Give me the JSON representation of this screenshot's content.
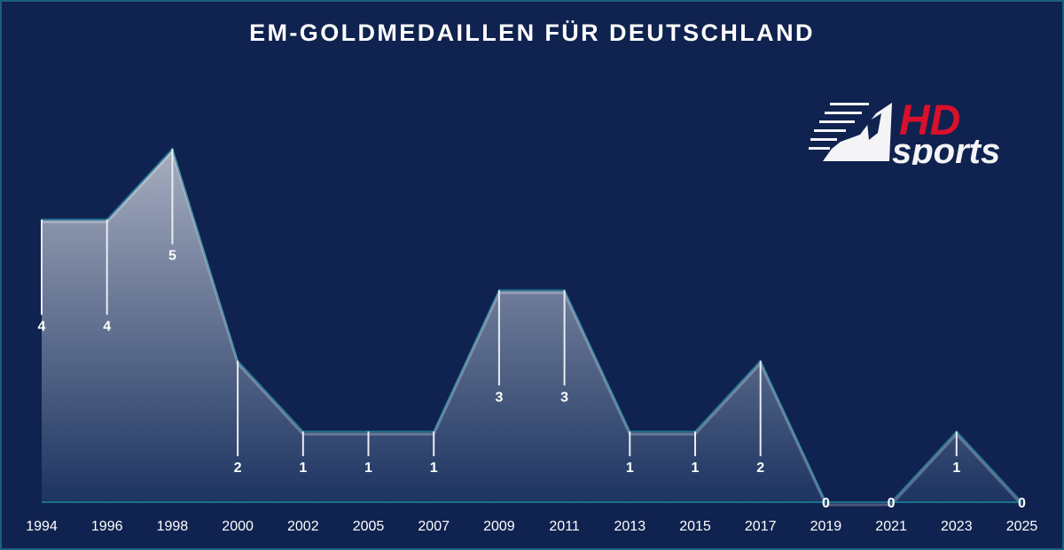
{
  "title": "EM-GOLDMEDAILLEN FÜR DEUTSCHLAND",
  "logo": {
    "top": "HD",
    "bottom": "sports",
    "icon": "runner-icon"
  },
  "colors": {
    "background": "#10224f",
    "border": "#1d5f80",
    "area_top": "#a6adbf",
    "area_bottom": "#1d3461",
    "outline": "#1e6f8f",
    "logo_red": "#d9102a",
    "text": "#ffffff"
  },
  "chart_data": {
    "type": "area",
    "title": "EM-GOLDMEDAILLEN FÜR DEUTSCHLAND",
    "xlabel": "",
    "ylabel": "",
    "categories": [
      "1994",
      "1996",
      "1998",
      "2000",
      "2002",
      "2005",
      "2007",
      "2009",
      "2011",
      "2013",
      "2015",
      "2017",
      "2019",
      "2021",
      "2023",
      "2025"
    ],
    "values": [
      4,
      4,
      5,
      2,
      1,
      1,
      1,
      3,
      3,
      1,
      1,
      2,
      0,
      0,
      1,
      0
    ],
    "ylim": [
      0,
      5
    ],
    "grid": false,
    "legend": "none",
    "data_labels": true
  }
}
